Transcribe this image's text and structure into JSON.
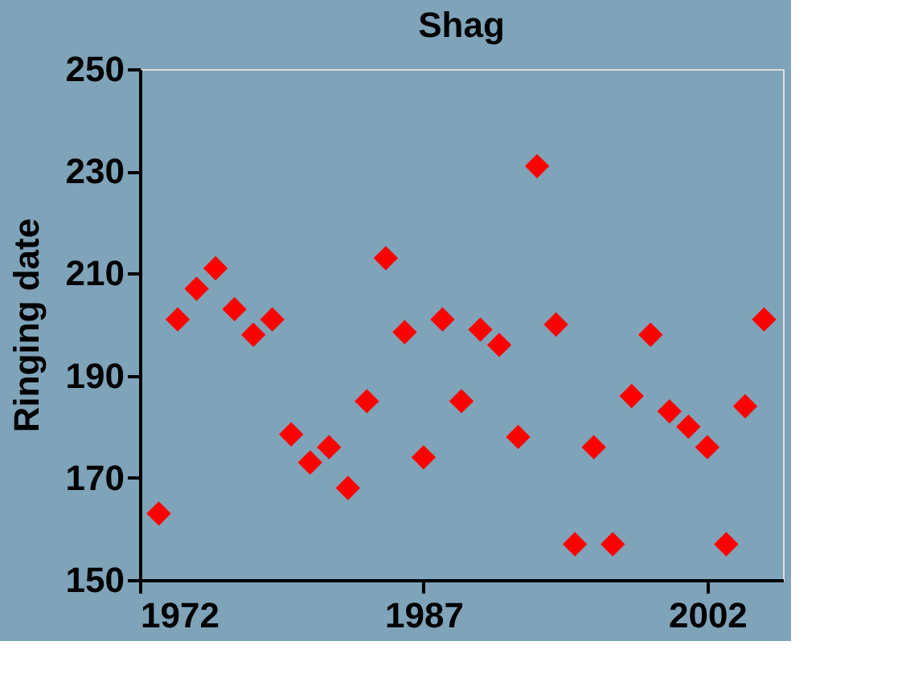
{
  "chart_data": {
    "type": "scatter",
    "title": "Shag",
    "ylabel": "Ringing date",
    "x": [
      1973,
      1974,
      1975,
      1976,
      1977,
      1978,
      1979,
      1980,
      1981,
      1982,
      1983,
      1984,
      1985,
      1986,
      1987,
      1988,
      1989,
      1990,
      1991,
      1992,
      1993,
      1994,
      1995,
      1996,
      1997,
      1998,
      1999,
      2000,
      2001,
      2002,
      2003,
      2004,
      2005
    ],
    "series": [
      {
        "color": "#ff0000",
        "values": [
          163,
          201,
          207,
          211,
          203,
          198,
          201,
          178.5,
          173,
          176,
          168,
          185,
          213,
          198.5,
          174,
          201,
          185,
          199,
          196,
          178,
          231,
          200,
          157,
          176,
          157,
          186,
          198,
          183,
          180,
          176,
          157,
          184,
          201
        ]
      }
    ],
    "xlim": [
      1972,
      2006
    ],
    "xticks": [
      1972,
      1987,
      2002
    ],
    "ylim": [
      150,
      250
    ],
    "yticks": [
      150,
      170,
      190,
      210,
      230,
      250
    ],
    "marker": "diamond",
    "grid": false,
    "legend": false
  }
}
